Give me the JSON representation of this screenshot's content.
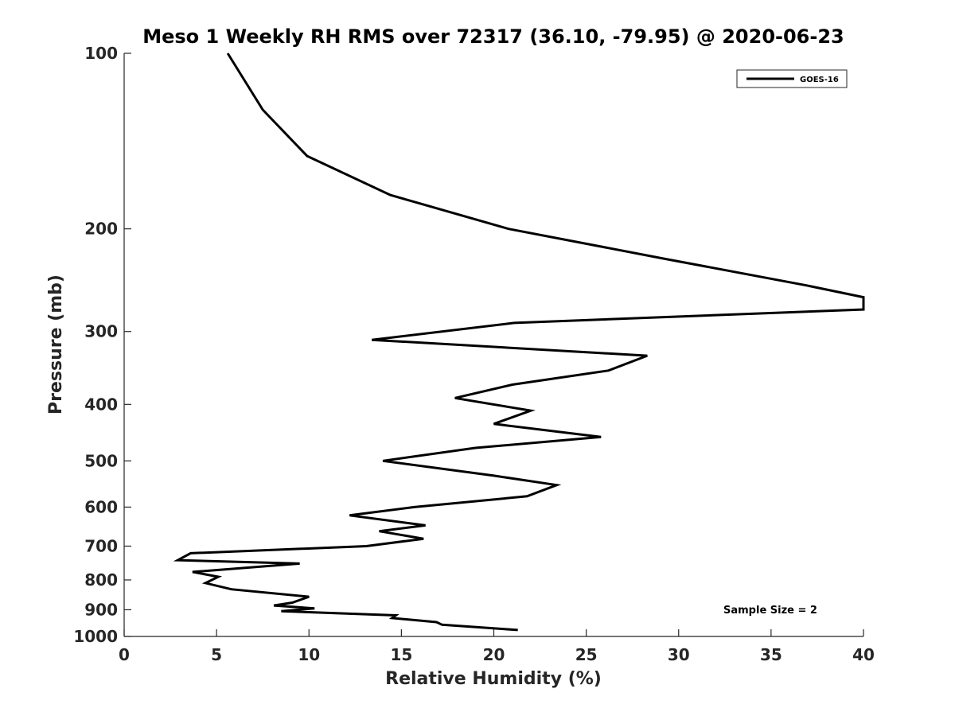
{
  "chart_data": {
    "type": "line",
    "title": "Meso 1 Weekly RH RMS over 72317 (36.10, -79.95) @ 2020-06-23",
    "xlabel": "Relative Humidity (%)",
    "ylabel": "Pressure (mb)",
    "xlim": [
      0,
      40
    ],
    "ylim": [
      100,
      1000
    ],
    "y_scale": "log",
    "y_reversed": true,
    "x_ticks": [
      0,
      5,
      10,
      15,
      20,
      25,
      30,
      35,
      40
    ],
    "y_ticks": [
      100,
      200,
      300,
      400,
      500,
      600,
      700,
      800,
      900,
      1000
    ],
    "grid": false,
    "legend_position": "top-right",
    "annotation": "Sample Size = 2",
    "series": [
      {
        "name": "GOES-16",
        "color": "#000000",
        "points": [
          [
            5.6,
            100
          ],
          [
            7.5,
            125
          ],
          [
            9.9,
            150
          ],
          [
            14.4,
            175
          ],
          [
            20.8,
            200
          ],
          [
            29.2,
            225
          ],
          [
            36.9,
            250
          ],
          [
            40.0,
            262
          ],
          [
            40.0,
            275
          ],
          [
            21.1,
            290
          ],
          [
            13.4,
            310
          ],
          [
            28.3,
            330
          ],
          [
            26.2,
            350
          ],
          [
            21.0,
            370
          ],
          [
            17.9,
            390
          ],
          [
            22.0,
            410
          ],
          [
            20.0,
            432
          ],
          [
            25.8,
            455
          ],
          [
            19.0,
            475
          ],
          [
            14.0,
            500
          ],
          [
            20.0,
            530
          ],
          [
            23.4,
            550
          ],
          [
            21.8,
            575
          ],
          [
            15.7,
            600
          ],
          [
            12.2,
            620
          ],
          [
            16.3,
            645
          ],
          [
            13.8,
            660
          ],
          [
            16.2,
            680
          ],
          [
            13.1,
            700
          ],
          [
            3.6,
            720
          ],
          [
            2.9,
            740
          ],
          [
            9.5,
            750
          ],
          [
            3.7,
            775
          ],
          [
            5.1,
            790
          ],
          [
            4.4,
            810
          ],
          [
            5.8,
            830
          ],
          [
            10.0,
            855
          ],
          [
            9.1,
            875
          ],
          [
            8.1,
            885
          ],
          [
            10.3,
            895
          ],
          [
            8.5,
            905
          ],
          [
            14.7,
            920
          ],
          [
            14.5,
            930
          ],
          [
            16.9,
            945
          ],
          [
            17.2,
            955
          ],
          [
            21.3,
            975
          ]
        ]
      }
    ]
  }
}
